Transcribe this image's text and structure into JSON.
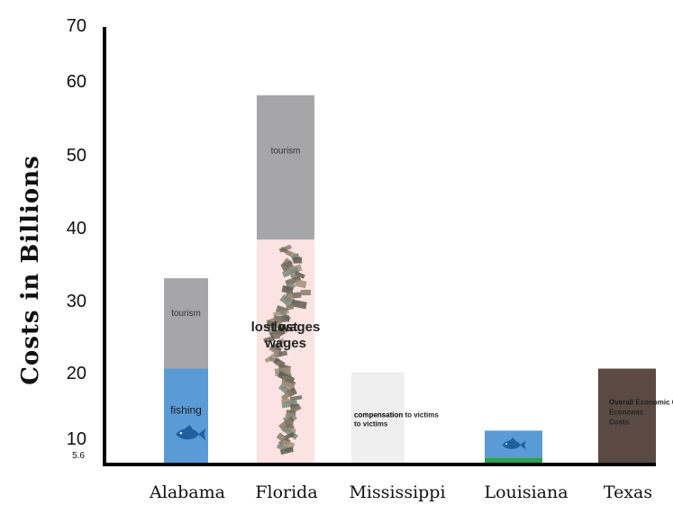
{
  "chart_data": {
    "type": "bar",
    "stacked": true,
    "title": "",
    "xlabel": "",
    "ylabel": "Costs in Billions",
    "ylim": [
      0,
      70
    ],
    "y_ticks": [
      "70",
      "60",
      "50",
      "40",
      "30",
      "20",
      "10"
    ],
    "y_extra_tick": "5.6",
    "categories": [
      "Alabama",
      "Florida",
      "Mississippi",
      "Louisiana",
      "Texas"
    ],
    "bars": [
      {
        "category": "Alabama",
        "segments": [
          {
            "label": "fishing",
            "value": 12.9,
            "color": "#5b9bd5",
            "icon": "fish-icon"
          },
          {
            "label": "tourism",
            "value": 12.4,
            "color": "#a6a6a8"
          }
        ]
      },
      {
        "category": "Florida",
        "segments": [
          {
            "label": "lost wages",
            "value": 30.6,
            "color": "#fbe3e3",
            "icon": "money-swirl-icon"
          },
          {
            "label": "tourism",
            "value": 19.8,
            "color": "#a6a6a8"
          }
        ]
      },
      {
        "category": "Mississippi",
        "segments": [
          {
            "label": "compensation to victims",
            "value": 12.4,
            "color": "#efefef"
          }
        ]
      },
      {
        "category": "Louisiana",
        "segments": [
          {
            "label": "",
            "value": 0.7,
            "color": "#2e9e4e"
          },
          {
            "label": "",
            "value": 3.7,
            "color": "#5b9bd5",
            "icon": "fish-icon"
          }
        ]
      },
      {
        "category": "Texas",
        "segments": [
          {
            "label": "Overall Economic Costs",
            "value": 12.9,
            "color": "#5a4a43",
            "label_color": "#2a1f1a"
          }
        ]
      }
    ],
    "grid": false,
    "legend": "none"
  }
}
